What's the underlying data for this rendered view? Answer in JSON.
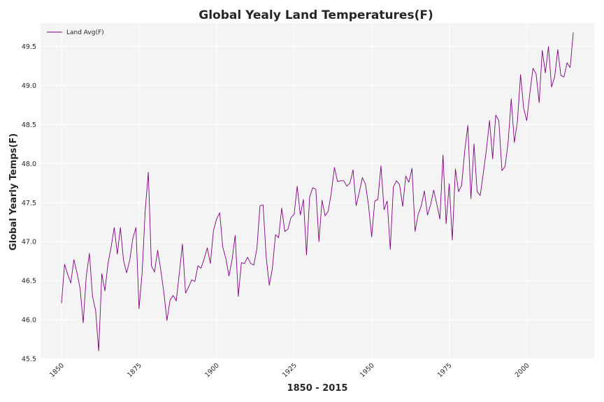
{
  "chart_data": {
    "type": "line",
    "title": "Global Yealy Land Temperatures(F)",
    "xlabel": "1850 - 2015",
    "ylabel": "Global Yearly Temps(F)",
    "xlim": [
      1843.25,
      2021.75
    ],
    "ylim": [
      45.5,
      49.8
    ],
    "xticks": [
      1850,
      1875,
      1900,
      1925,
      1950,
      1975,
      2000
    ],
    "yticks": [
      45.5,
      46.0,
      46.5,
      47.0,
      47.5,
      48.0,
      48.5,
      49.0,
      49.5
    ],
    "ytick_labels": [
      "45.5",
      "46.0",
      "46.5",
      "47.0",
      "47.5",
      "48.0",
      "48.5",
      "49.0",
      "49.5"
    ],
    "grid": true,
    "legend_position": "top-left",
    "colors": {
      "plot_bg": "#f4f4f4",
      "grid": "#ffffff",
      "line": "#800080"
    },
    "series": [
      {
        "name": "Land Avg(F)",
        "x": [
          1850,
          1851,
          1852,
          1853,
          1854,
          1855,
          1856,
          1857,
          1858,
          1859,
          1860,
          1861,
          1862,
          1863,
          1864,
          1865,
          1866,
          1867,
          1868,
          1869,
          1870,
          1871,
          1872,
          1873,
          1874,
          1875,
          1876,
          1877,
          1878,
          1879,
          1880,
          1881,
          1882,
          1883,
          1884,
          1885,
          1886,
          1887,
          1888,
          1889,
          1890,
          1891,
          1892,
          1893,
          1894,
          1895,
          1896,
          1897,
          1898,
          1899,
          1900,
          1901,
          1902,
          1903,
          1904,
          1905,
          1906,
          1907,
          1908,
          1909,
          1910,
          1911,
          1912,
          1913,
          1914,
          1915,
          1916,
          1917,
          1918,
          1919,
          1920,
          1921,
          1922,
          1923,
          1924,
          1925,
          1926,
          1927,
          1928,
          1929,
          1930,
          1931,
          1932,
          1933,
          1934,
          1935,
          1936,
          1937,
          1938,
          1939,
          1940,
          1941,
          1942,
          1943,
          1944,
          1945,
          1946,
          1947,
          1948,
          1949,
          1950,
          1951,
          1952,
          1953,
          1954,
          1955,
          1956,
          1957,
          1958,
          1959,
          1960,
          1961,
          1962,
          1963,
          1964,
          1965,
          1966,
          1967,
          1968,
          1969,
          1970,
          1971,
          1972,
          1973,
          1974,
          1975,
          1976,
          1977,
          1978,
          1979,
          1980,
          1981,
          1982,
          1983,
          1984,
          1985,
          1986,
          1987,
          1988,
          1989,
          1990,
          1991,
          1992,
          1993,
          1994,
          1995,
          1996,
          1997,
          1998,
          1999,
          2000,
          2001,
          2002,
          2003,
          2004,
          2005,
          2006,
          2007,
          2008,
          2009,
          2010,
          2011,
          2012,
          2013,
          2014,
          2015
        ],
        "values": [
          46.21,
          46.71,
          46.58,
          46.47,
          46.77,
          46.6,
          46.4,
          45.96,
          46.56,
          46.85,
          46.3,
          46.12,
          45.6,
          46.59,
          46.37,
          46.72,
          46.93,
          47.18,
          46.84,
          47.18,
          46.76,
          46.6,
          46.76,
          47.04,
          47.18,
          46.14,
          46.6,
          47.4,
          47.89,
          46.69,
          46.61,
          46.89,
          46.64,
          46.35,
          45.99,
          46.25,
          46.31,
          46.24,
          46.6,
          46.97,
          46.34,
          46.42,
          46.51,
          46.49,
          46.69,
          46.66,
          46.78,
          46.92,
          46.72,
          47.14,
          47.29,
          47.37,
          46.93,
          46.78,
          46.56,
          46.77,
          47.08,
          46.3,
          46.73,
          46.72,
          46.8,
          46.72,
          46.7,
          46.91,
          47.46,
          47.47,
          46.8,
          46.44,
          46.66,
          47.09,
          47.05,
          47.43,
          47.13,
          47.16,
          47.31,
          47.35,
          47.71,
          47.34,
          47.54,
          46.83,
          47.57,
          47.69,
          47.67,
          47.0,
          47.53,
          47.33,
          47.39,
          47.63,
          47.95,
          47.77,
          47.78,
          47.78,
          47.71,
          47.75,
          47.92,
          47.46,
          47.63,
          47.82,
          47.74,
          47.46,
          47.06,
          47.52,
          47.54,
          47.97,
          47.41,
          47.52,
          46.9,
          47.7,
          47.78,
          47.73,
          47.45,
          47.84,
          47.76,
          47.94,
          47.13,
          47.35,
          47.46,
          47.65,
          47.34,
          47.47,
          47.66,
          47.48,
          47.29,
          48.11,
          47.23,
          47.74,
          47.02,
          47.93,
          47.64,
          47.72,
          48.16,
          48.49,
          47.55,
          48.25,
          47.64,
          47.59,
          47.88,
          48.18,
          48.55,
          48.06,
          48.62,
          48.55,
          47.91,
          47.96,
          48.27,
          48.83,
          48.27,
          48.54,
          49.14,
          48.71,
          48.55,
          48.9,
          49.22,
          49.15,
          48.78,
          49.45,
          49.16,
          49.5,
          48.98,
          49.11,
          49.46,
          49.13,
          49.11,
          49.29,
          49.23,
          49.68
        ]
      }
    ]
  }
}
